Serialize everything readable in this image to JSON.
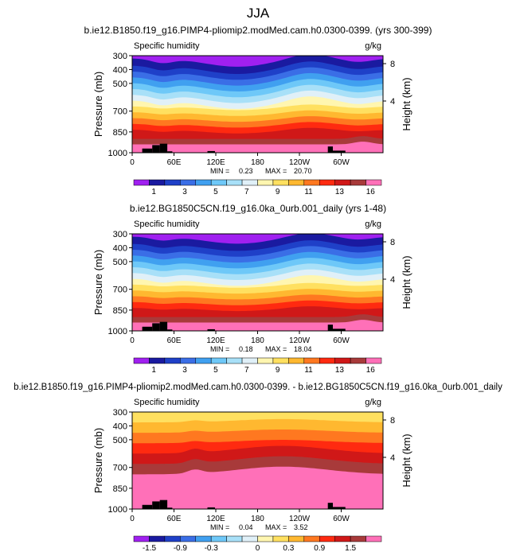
{
  "figure": {
    "season": "JJA"
  },
  "colors": {
    "abs": [
      "#a020f0",
      "#1a1aa0",
      "#1f40c8",
      "#3a6ee6",
      "#40a0f0",
      "#6ec8f8",
      "#a8e0f8",
      "#e0f0f8",
      "#fff6b0",
      "#ffe060",
      "#ffb830",
      "#ff7820",
      "#ff2a10",
      "#d01818",
      "#a83a3a",
      "#ff70b8"
    ],
    "diff": [
      "#a020f0",
      "#1a1aa0",
      "#1f40c8",
      "#3a6ee6",
      "#40a0f0",
      "#6ec8f8",
      "#a8e0f8",
      "#e0f0f8",
      "#fff6b0",
      "#ffe060",
      "#ffb830",
      "#ff7820",
      "#ff2a10",
      "#d01818",
      "#a83a3a",
      "#ff70b8"
    ]
  },
  "chart_data": [
    {
      "type": "heatmap",
      "title": "b.ie12.B1850.f19_g16.PIMP4-pliomip2.modMed.cam.h0.0300-0399. (yrs 300-399)",
      "variable": "Specific humidity",
      "units": "g/kg",
      "ylabel": "Pressure (mb)",
      "y2label": "Height (km)",
      "y_ticks": [
        "300",
        "400",
        "500",
        "700",
        "850",
        "1000"
      ],
      "y2_ticks": [
        "8",
        "4"
      ],
      "x_ticks": [
        "0",
        "60E",
        "120E",
        "180",
        "120W",
        "60W"
      ],
      "min_label": "MIN =",
      "min_value": "0.23",
      "max_label": "MAX =",
      "max_value": "20.70",
      "colorbar_labels": [
        "1",
        "3",
        "5",
        "7",
        "9",
        "11",
        "13",
        "16"
      ]
    },
    {
      "type": "heatmap",
      "title": "b.ie12.BG1850C5CN.f19_g16.0ka_0urb.001_daily (yrs 1-48)",
      "variable": "Specific humidity",
      "units": "g/kg",
      "ylabel": "Pressure (mb)",
      "y2label": "Height (km)",
      "y_ticks": [
        "300",
        "400",
        "500",
        "700",
        "850",
        "1000"
      ],
      "y2_ticks": [
        "8",
        "4"
      ],
      "x_ticks": [
        "0",
        "60E",
        "120E",
        "180",
        "120W",
        "60W"
      ],
      "min_label": "MIN =",
      "min_value": "0.18",
      "max_label": "MAX =",
      "max_value": "18.04",
      "colorbar_labels": [
        "1",
        "3",
        "5",
        "7",
        "9",
        "11",
        "13",
        "16"
      ]
    },
    {
      "type": "heatmap",
      "title": "b.ie12.B1850.f19_g16.PIMP4-pliomip2.modMed.cam.h0.0300-0399. - b.ie12.BG1850C5CN.f19_g16.0ka_0urb.001_daily",
      "variable": "Specific humidity",
      "units": "g/kg",
      "ylabel": "Pressure (mb)",
      "y2label": "Height (km)",
      "y_ticks": [
        "300",
        "400",
        "500",
        "700",
        "850",
        "1000"
      ],
      "y2_ticks": [
        "8",
        "4"
      ],
      "x_ticks": [
        "0",
        "60E",
        "120E",
        "180",
        "120W",
        "60W"
      ],
      "min_label": "MIN =",
      "min_value": "0.04",
      "max_label": "MAX =",
      "max_value": "3.52",
      "colorbar_labels": [
        "-1.5",
        "-0.9",
        "-0.3",
        "0",
        "0.3",
        "0.9",
        "1.5"
      ]
    }
  ]
}
